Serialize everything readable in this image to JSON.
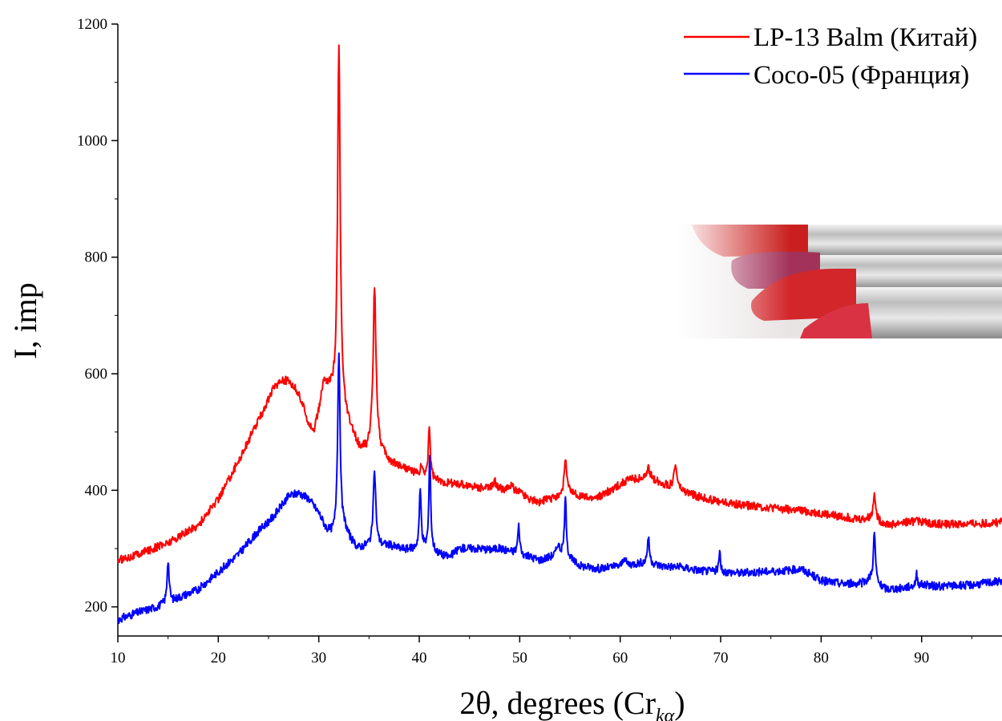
{
  "chart_data": {
    "type": "line",
    "title": "",
    "xlabel": "2θ, degrees (Cr",
    "xlabel_sub": "kα",
    "xlabel_end": ")",
    "ylabel": "I, imp",
    "xlim": [
      10,
      98
    ],
    "ylim": [
      150,
      1200
    ],
    "x_ticks": [
      10,
      20,
      30,
      40,
      50,
      60,
      70,
      80,
      90
    ],
    "y_ticks": [
      200,
      400,
      600,
      800,
      1000,
      1200
    ],
    "grid": false,
    "legend_position": "top-right",
    "series": [
      {
        "name": "LP-13 Balm (Китай)",
        "color": "#ff0000",
        "baseline": [
          [
            10,
            280
          ],
          [
            12,
            290
          ],
          [
            15,
            310
          ],
          [
            18,
            340
          ],
          [
            20,
            385
          ],
          [
            22,
            450
          ],
          [
            24,
            520
          ],
          [
            25.5,
            575
          ],
          [
            26.3,
            590
          ],
          [
            27.2,
            585
          ],
          [
            28,
            565
          ],
          [
            29,
            515
          ],
          [
            29.5,
            500
          ],
          [
            30,
            535
          ],
          [
            30.5,
            585
          ],
          [
            31,
            575
          ],
          [
            31.5,
            565
          ],
          [
            32,
            560
          ],
          [
            33,
            510
          ],
          [
            34,
            475
          ],
          [
            34.8,
            470
          ],
          [
            35,
            480
          ],
          [
            35.6,
            520
          ],
          [
            36.2,
            470
          ],
          [
            37,
            450
          ],
          [
            39,
            435
          ],
          [
            40,
            425
          ],
          [
            41,
            420
          ],
          [
            42,
            415
          ],
          [
            44,
            410
          ],
          [
            46,
            405
          ],
          [
            48,
            403
          ],
          [
            50,
            398
          ],
          [
            51,
            385
          ],
          [
            52,
            380
          ],
          [
            54,
            390
          ],
          [
            55,
            395
          ],
          [
            56,
            390
          ],
          [
            57,
            385
          ],
          [
            58,
            390
          ],
          [
            59,
            400
          ],
          [
            60,
            410
          ],
          [
            61,
            420
          ],
          [
            62,
            420
          ],
          [
            63,
            422
          ],
          [
            64,
            412
          ],
          [
            65,
            405
          ],
          [
            66,
            398
          ],
          [
            68,
            388
          ],
          [
            70,
            380
          ],
          [
            72,
            375
          ],
          [
            75,
            370
          ],
          [
            78,
            365
          ],
          [
            80,
            360
          ],
          [
            82,
            355
          ],
          [
            84,
            350
          ],
          [
            85,
            352
          ],
          [
            86,
            345
          ],
          [
            87,
            340
          ],
          [
            88,
            345
          ],
          [
            90,
            345
          ],
          [
            92,
            342
          ],
          [
            95,
            342
          ],
          [
            98,
            345
          ]
        ],
        "peaks": [
          [
            32.0,
            610,
            0.15
          ],
          [
            35.55,
            235,
            0.15
          ],
          [
            41.0,
            90,
            0.12
          ],
          [
            40.2,
            20,
            0.1
          ],
          [
            54.55,
            60,
            0.15
          ],
          [
            65.5,
            40,
            0.2
          ],
          [
            85.3,
            50,
            0.12
          ],
          [
            62.8,
            15,
            0.15
          ],
          [
            47.5,
            12,
            0.15
          ],
          [
            49.2,
            10,
            0.15
          ],
          [
            89.5,
            12,
            0.1
          ]
        ],
        "noise": 7
      },
      {
        "name": "Coco-05  (Франция)",
        "color": "#0000ff",
        "baseline": [
          [
            10,
            178
          ],
          [
            12,
            190
          ],
          [
            14,
            200
          ],
          [
            15.5,
            210
          ],
          [
            16,
            215
          ],
          [
            18,
            230
          ],
          [
            20,
            260
          ],
          [
            22,
            290
          ],
          [
            24,
            330
          ],
          [
            25.5,
            355
          ],
          [
            27,
            390
          ],
          [
            28,
            395
          ],
          [
            29,
            385
          ],
          [
            30,
            360
          ],
          [
            30.8,
            330
          ],
          [
            31.5,
            320
          ],
          [
            32,
            320
          ],
          [
            32.6,
            330
          ],
          [
            33.5,
            305
          ],
          [
            34,
            300
          ],
          [
            35,
            305
          ],
          [
            36,
            305
          ],
          [
            37,
            305
          ],
          [
            38,
            300
          ],
          [
            39,
            298
          ],
          [
            40,
            300
          ],
          [
            41,
            300
          ],
          [
            42,
            290
          ],
          [
            43,
            285
          ],
          [
            44,
            300
          ],
          [
            45,
            300
          ],
          [
            46,
            300
          ],
          [
            47,
            298
          ],
          [
            48,
            300
          ],
          [
            49,
            295
          ],
          [
            50,
            290
          ],
          [
            51,
            285
          ],
          [
            52,
            280
          ],
          [
            53,
            285
          ],
          [
            54,
            290
          ],
          [
            55,
            280
          ],
          [
            56,
            270
          ],
          [
            58,
            265
          ],
          [
            60,
            270
          ],
          [
            62,
            275
          ],
          [
            63,
            275
          ],
          [
            64,
            270
          ],
          [
            66,
            268
          ],
          [
            68,
            262
          ],
          [
            70,
            260
          ],
          [
            72,
            258
          ],
          [
            74,
            260
          ],
          [
            76,
            262
          ],
          [
            78,
            265
          ],
          [
            80,
            245
          ],
          [
            82,
            240
          ],
          [
            84,
            240
          ],
          [
            85,
            248
          ],
          [
            85.8,
            235
          ],
          [
            86.5,
            230
          ],
          [
            88,
            232
          ],
          [
            90,
            238
          ],
          [
            92,
            235
          ],
          [
            95,
            238
          ],
          [
            98,
            245
          ]
        ],
        "peaks": [
          [
            15.0,
            75,
            0.12
          ],
          [
            32.0,
            315,
            0.15
          ],
          [
            35.55,
            128,
            0.15
          ],
          [
            40.1,
            98,
            0.12
          ],
          [
            41.05,
            165,
            0.1
          ],
          [
            49.9,
            48,
            0.12
          ],
          [
            53.8,
            18,
            0.15
          ],
          [
            54.55,
            100,
            0.12
          ],
          [
            60.4,
            15,
            0.15
          ],
          [
            62.8,
            45,
            0.12
          ],
          [
            69.9,
            32,
            0.1
          ],
          [
            85.3,
            85,
            0.12
          ],
          [
            89.5,
            20,
            0.1
          ]
        ],
        "noise": 7
      }
    ]
  },
  "inset_image": {
    "subject": "lipsticks-photo",
    "colors": [
      "#c9201f",
      "#a3325a",
      "#d2262a",
      "#d93243",
      "#b7b7b7"
    ]
  }
}
